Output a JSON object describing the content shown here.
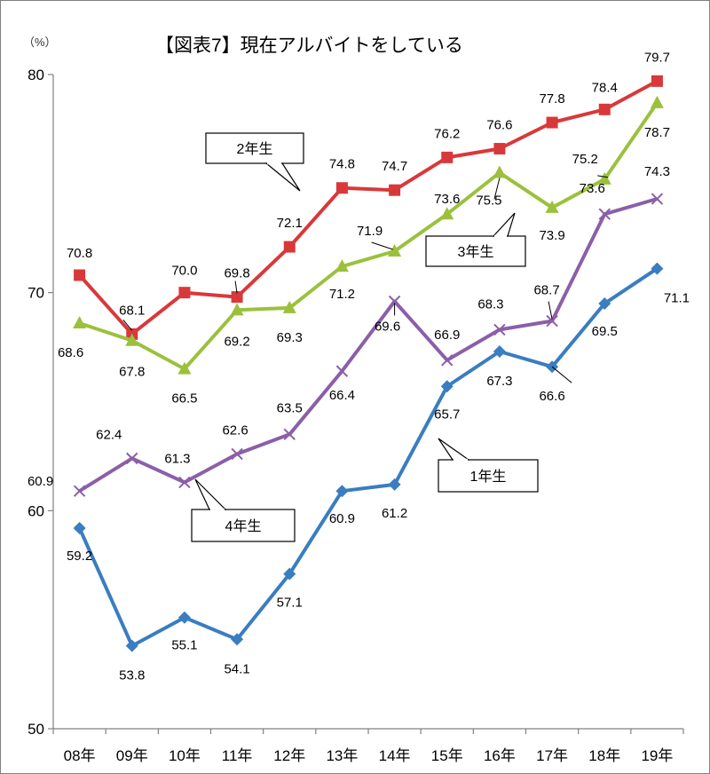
{
  "chart_data": {
    "type": "line",
    "title": "【図表7】現在アルバイトをしている",
    "unit_label": "（%）",
    "ylim": [
      50,
      80
    ],
    "yticks": [
      50,
      60,
      70,
      80
    ],
    "grid": false,
    "categories": [
      "08年",
      "09年",
      "10年",
      "11年",
      "12年",
      "13年",
      "14年",
      "15年",
      "16年",
      "17年",
      "18年",
      "19年"
    ],
    "series": [
      {
        "name": "1年生",
        "color": "#3a7dc0",
        "marker": "diamond",
        "values": [
          59.2,
          53.8,
          55.1,
          54.1,
          57.1,
          60.9,
          61.2,
          65.7,
          67.3,
          66.6,
          69.5,
          71.1
        ],
        "labels": [
          "59.2",
          "53.8",
          "55.1",
          "54.1",
          "57.1",
          "60.9",
          "61.2",
          "65.7",
          "67.3",
          "66.6",
          "69.5",
          "71.1"
        ]
      },
      {
        "name": "2年生",
        "color": "#d9383a",
        "marker": "square",
        "values": [
          70.8,
          68.1,
          70.0,
          69.8,
          72.1,
          74.8,
          74.7,
          76.2,
          76.6,
          77.8,
          78.4,
          79.7
        ],
        "labels": [
          "70.8",
          "68.1",
          "70.0",
          "69.8",
          "72.1",
          "74.8",
          "74.7",
          "76.2",
          "76.6",
          "77.8",
          "78.4",
          "79.7"
        ]
      },
      {
        "name": "3年生",
        "color": "#9bc13c",
        "marker": "triangle",
        "values": [
          68.6,
          67.8,
          66.5,
          69.2,
          69.3,
          71.2,
          71.9,
          73.6,
          75.5,
          73.9,
          75.2,
          78.7
        ],
        "labels": [
          "68.6",
          "67.8",
          "66.5",
          "69.2",
          "69.3",
          "71.2",
          "71.9",
          "73.6",
          "75.5",
          "73.9",
          "75.2",
          "78.7"
        ]
      },
      {
        "name": "4年生",
        "color": "#8b5fa8",
        "marker": "x",
        "values": [
          60.9,
          62.4,
          61.3,
          62.6,
          63.5,
          66.4,
          69.6,
          66.9,
          68.3,
          68.7,
          73.6,
          74.3
        ],
        "labels": [
          "60.9",
          "62.4",
          "61.3",
          "62.6",
          "63.5",
          "66.4",
          "69.6",
          "66.9",
          "68.3",
          "68.7",
          "73.6",
          "74.3"
        ]
      }
    ]
  }
}
